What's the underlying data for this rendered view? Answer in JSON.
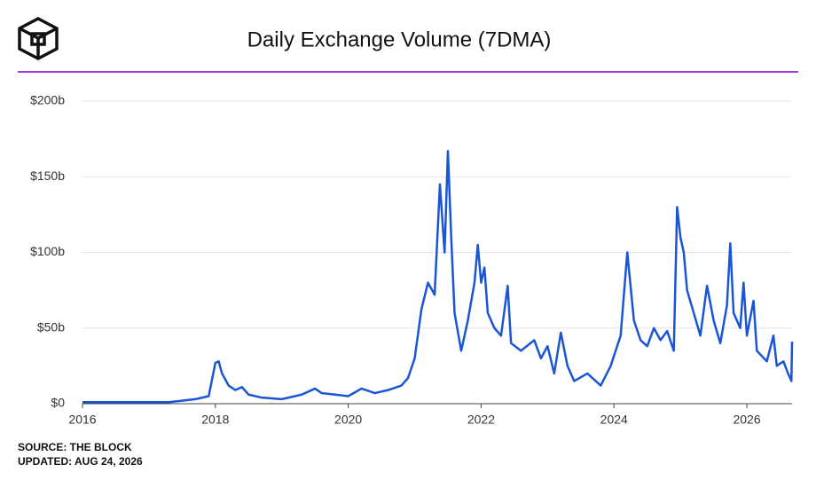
{
  "chart_data": {
    "type": "line",
    "title": "Daily Exchange Volume (7DMA)",
    "source": "SOURCE: THE BLOCK",
    "updated": "UPDATED: AUG 24, 2026",
    "xlim": [
      2016,
      2026.68
    ],
    "xticks": [
      2016,
      2018,
      2020,
      2022,
      2024,
      2026
    ],
    "ylim": [
      0,
      200
    ],
    "yticks": [
      {
        "value": 0,
        "label": "$0"
      },
      {
        "value": 50,
        "label": "$50b"
      },
      {
        "value": 100,
        "label": "$100b"
      },
      {
        "value": 150,
        "label": "$150b"
      },
      {
        "value": 200,
        "label": "$200b"
      }
    ],
    "grid": true,
    "series": [
      {
        "name": "Daily Exchange Volume (7DMA)",
        "color": "#1a55d6",
        "x": [
          2016.0,
          2016.5,
          2017.0,
          2017.3,
          2017.5,
          2017.7,
          2017.9,
          2018.0,
          2018.05,
          2018.1,
          2018.2,
          2018.3,
          2018.4,
          2018.5,
          2018.7,
          2019.0,
          2019.3,
          2019.5,
          2019.6,
          2019.8,
          2020.0,
          2020.2,
          2020.4,
          2020.6,
          2020.8,
          2020.9,
          2021.0,
          2021.1,
          2021.2,
          2021.3,
          2021.38,
          2021.45,
          2021.5,
          2021.55,
          2021.6,
          2021.7,
          2021.8,
          2021.9,
          2021.95,
          2022.0,
          2022.05,
          2022.1,
          2022.2,
          2022.3,
          2022.4,
          2022.45,
          2022.6,
          2022.8,
          2022.9,
          2023.0,
          2023.1,
          2023.2,
          2023.3,
          2023.4,
          2023.6,
          2023.8,
          2023.95,
          2024.1,
          2024.2,
          2024.3,
          2024.4,
          2024.5,
          2024.6,
          2024.7,
          2024.8,
          2024.9,
          2024.95,
          2025.0,
          2025.05,
          2025.1,
          2025.2,
          2025.3,
          2025.4,
          2025.5,
          2025.6,
          2025.7,
          2025.75,
          2025.8,
          2025.9,
          2025.95,
          2026.0,
          2026.1,
          2026.15,
          2026.3,
          2026.4,
          2026.45,
          2026.55,
          2026.62,
          2026.67,
          2026.68
        ],
        "values": [
          1,
          1,
          1,
          1,
          2,
          3,
          5,
          27,
          28,
          20,
          12,
          9,
          11,
          6,
          4,
          3,
          6,
          10,
          7,
          6,
          5,
          10,
          7,
          9,
          12,
          17,
          30,
          62,
          80,
          72,
          145,
          100,
          167,
          110,
          60,
          35,
          55,
          80,
          105,
          80,
          90,
          60,
          50,
          45,
          78,
          40,
          35,
          42,
          30,
          38,
          20,
          47,
          25,
          15,
          20,
          12,
          25,
          45,
          100,
          55,
          42,
          38,
          50,
          42,
          48,
          35,
          130,
          110,
          100,
          75,
          60,
          45,
          78,
          55,
          40,
          65,
          106,
          60,
          50,
          80,
          45,
          68,
          35,
          28,
          45,
          25,
          28,
          20,
          15,
          41
        ]
      }
    ]
  }
}
